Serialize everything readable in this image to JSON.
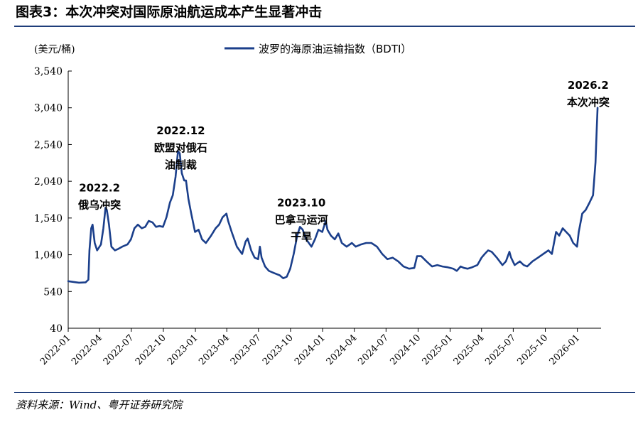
{
  "header": {
    "title": "图表3：本次冲突对国际原油航运成本产生显著冲击"
  },
  "footer": {
    "source": "资料来源：Wind、粤开证券研究院"
  },
  "colors": {
    "line": "#1b3f8b",
    "rule": "#1f3d7a"
  },
  "chart_data": {
    "type": "line",
    "title": "",
    "ylabel": "(美元/桶)",
    "xlabel": "",
    "ylim": [
      40,
      3540
    ],
    "yticks": [
      40,
      540,
      1040,
      1540,
      2040,
      2540,
      3040,
      3540
    ],
    "ytick_labels": [
      "40",
      "540",
      "1,040",
      "1,540",
      "2,040",
      "2,540",
      "3,040",
      "3,540"
    ],
    "xticks": [
      "2022-01",
      "2022-04",
      "2022-07",
      "2022-10",
      "2023-01",
      "2023-04",
      "2023-07",
      "2023-10",
      "2024-01",
      "2024-04",
      "2024-07",
      "2024-10",
      "2025-01",
      "2025-04",
      "2025-07",
      "2025-10",
      "2026-01"
    ],
    "legend": {
      "label": "波罗的海原油运输指数（BDTI）",
      "position": "top-center"
    },
    "series": [
      {
        "name": "波罗的海原油运输指数（BDTI）",
        "points": [
          [
            "2022-01-01",
            680
          ],
          [
            "2022-01-15",
            670
          ],
          [
            "2022-02-01",
            660
          ],
          [
            "2022-02-20",
            665
          ],
          [
            "2022-02-28",
            700
          ],
          [
            "2022-03-03",
            1100
          ],
          [
            "2022-03-08",
            1400
          ],
          [
            "2022-03-12",
            1450
          ],
          [
            "2022-03-18",
            1200
          ],
          [
            "2022-03-25",
            1100
          ],
          [
            "2022-04-05",
            1180
          ],
          [
            "2022-04-12",
            1400
          ],
          [
            "2022-04-18",
            1680
          ],
          [
            "2022-04-22",
            1650
          ],
          [
            "2022-04-28",
            1450
          ],
          [
            "2022-05-05",
            1150
          ],
          [
            "2022-05-15",
            1100
          ],
          [
            "2022-05-25",
            1120
          ],
          [
            "2022-06-05",
            1150
          ],
          [
            "2022-06-20",
            1180
          ],
          [
            "2022-06-30",
            1250
          ],
          [
            "2022-07-10",
            1400
          ],
          [
            "2022-07-20",
            1450
          ],
          [
            "2022-07-31",
            1400
          ],
          [
            "2022-08-10",
            1420
          ],
          [
            "2022-08-20",
            1500
          ],
          [
            "2022-08-31",
            1480
          ],
          [
            "2022-09-10",
            1420
          ],
          [
            "2022-09-20",
            1430
          ],
          [
            "2022-09-30",
            1420
          ],
          [
            "2022-10-10",
            1550
          ],
          [
            "2022-10-20",
            1750
          ],
          [
            "2022-10-28",
            1850
          ],
          [
            "2022-11-05",
            2100
          ],
          [
            "2022-11-12",
            2450
          ],
          [
            "2022-11-17",
            2420
          ],
          [
            "2022-11-23",
            2150
          ],
          [
            "2022-11-30",
            2050
          ],
          [
            "2022-12-05",
            2050
          ],
          [
            "2022-12-12",
            1800
          ],
          [
            "2022-12-20",
            1600
          ],
          [
            "2022-12-31",
            1350
          ],
          [
            "2023-01-10",
            1380
          ],
          [
            "2023-01-20",
            1250
          ],
          [
            "2023-01-31",
            1200
          ],
          [
            "2023-02-15",
            1300
          ],
          [
            "2023-02-28",
            1400
          ],
          [
            "2023-03-10",
            1450
          ],
          [
            "2023-03-20",
            1550
          ],
          [
            "2023-03-31",
            1600
          ],
          [
            "2023-04-05",
            1500
          ],
          [
            "2023-04-15",
            1350
          ],
          [
            "2023-04-30",
            1150
          ],
          [
            "2023-05-15",
            1050
          ],
          [
            "2023-05-25",
            1220
          ],
          [
            "2023-05-31",
            1260
          ],
          [
            "2023-06-10",
            1100
          ],
          [
            "2023-06-20",
            1000
          ],
          [
            "2023-06-30",
            980
          ],
          [
            "2023-07-05",
            1150
          ],
          [
            "2023-07-10",
            1000
          ],
          [
            "2023-07-20",
            880
          ],
          [
            "2023-07-31",
            820
          ],
          [
            "2023-08-15",
            790
          ],
          [
            "2023-08-31",
            760
          ],
          [
            "2023-09-10",
            720
          ],
          [
            "2023-09-20",
            740
          ],
          [
            "2023-09-30",
            850
          ],
          [
            "2023-10-10",
            1050
          ],
          [
            "2023-10-20",
            1300
          ],
          [
            "2023-10-28",
            1420
          ],
          [
            "2023-11-05",
            1380
          ],
          [
            "2023-11-15",
            1250
          ],
          [
            "2023-11-30",
            1150
          ],
          [
            "2023-12-10",
            1250
          ],
          [
            "2023-12-20",
            1380
          ],
          [
            "2023-12-31",
            1350
          ],
          [
            "2024-01-10",
            1500
          ],
          [
            "2024-01-15",
            1380
          ],
          [
            "2024-01-25",
            1300
          ],
          [
            "2024-02-05",
            1250
          ],
          [
            "2024-02-15",
            1330
          ],
          [
            "2024-02-25",
            1200
          ],
          [
            "2024-03-10",
            1150
          ],
          [
            "2024-03-25",
            1200
          ],
          [
            "2024-04-05",
            1150
          ],
          [
            "2024-04-20",
            1180
          ],
          [
            "2024-05-05",
            1200
          ],
          [
            "2024-05-20",
            1200
          ],
          [
            "2024-06-05",
            1150
          ],
          [
            "2024-06-20",
            1050
          ],
          [
            "2024-07-05",
            980
          ],
          [
            "2024-07-20",
            1000
          ],
          [
            "2024-08-05",
            950
          ],
          [
            "2024-08-20",
            880
          ],
          [
            "2024-09-05",
            850
          ],
          [
            "2024-09-20",
            860
          ],
          [
            "2024-09-28",
            1020
          ],
          [
            "2024-10-10",
            1020
          ],
          [
            "2024-10-25",
            950
          ],
          [
            "2024-11-10",
            880
          ],
          [
            "2024-11-25",
            900
          ],
          [
            "2024-12-10",
            880
          ],
          [
            "2024-12-25",
            870
          ],
          [
            "2025-01-10",
            850
          ],
          [
            "2025-01-20",
            820
          ],
          [
            "2025-01-31",
            880
          ],
          [
            "2025-02-10",
            860
          ],
          [
            "2025-02-20",
            850
          ],
          [
            "2025-03-05",
            870
          ],
          [
            "2025-03-20",
            900
          ],
          [
            "2025-04-01",
            1000
          ],
          [
            "2025-04-10",
            1050
          ],
          [
            "2025-04-20",
            1100
          ],
          [
            "2025-04-30",
            1080
          ],
          [
            "2025-05-15",
            1000
          ],
          [
            "2025-05-31",
            900
          ],
          [
            "2025-06-10",
            950
          ],
          [
            "2025-06-20",
            1080
          ],
          [
            "2025-06-25",
            1000
          ],
          [
            "2025-07-05",
            900
          ],
          [
            "2025-07-20",
            950
          ],
          [
            "2025-07-31",
            900
          ],
          [
            "2025-08-10",
            880
          ],
          [
            "2025-08-25",
            950
          ],
          [
            "2025-09-10",
            1000
          ],
          [
            "2025-09-25",
            1050
          ],
          [
            "2025-10-10",
            1100
          ],
          [
            "2025-10-20",
            1050
          ],
          [
            "2025-11-01",
            1350
          ],
          [
            "2025-11-10",
            1300
          ],
          [
            "2025-11-20",
            1400
          ],
          [
            "2025-11-30",
            1350
          ],
          [
            "2025-12-10",
            1300
          ],
          [
            "2025-12-20",
            1200
          ],
          [
            "2025-12-31",
            1150
          ],
          [
            "2026-01-05",
            1350
          ],
          [
            "2026-01-15",
            1600
          ],
          [
            "2026-01-25",
            1650
          ],
          [
            "2026-02-05",
            1750
          ],
          [
            "2026-02-15",
            1850
          ],
          [
            "2026-02-22",
            2300
          ],
          [
            "2026-02-26",
            2800
          ],
          [
            "2026-02-28",
            3040
          ]
        ]
      }
    ],
    "annotations": [
      {
        "date": "2022-04-01",
        "value": 1900,
        "lines": [
          "2022.2",
          "俄乌冲突"
        ]
      },
      {
        "date": "2022-11-20",
        "value": 2680,
        "lines": [
          "2022.12",
          "欧盟对俄石",
          "油制裁"
        ]
      },
      {
        "date": "2023-11-01",
        "value": 1700,
        "lines": [
          "2023.10",
          "巴拿马运河",
          "干旱"
        ]
      },
      {
        "date": "2026-02-01",
        "value": 3300,
        "lines": [
          "2026.2",
          "本次冲突"
        ]
      }
    ]
  }
}
